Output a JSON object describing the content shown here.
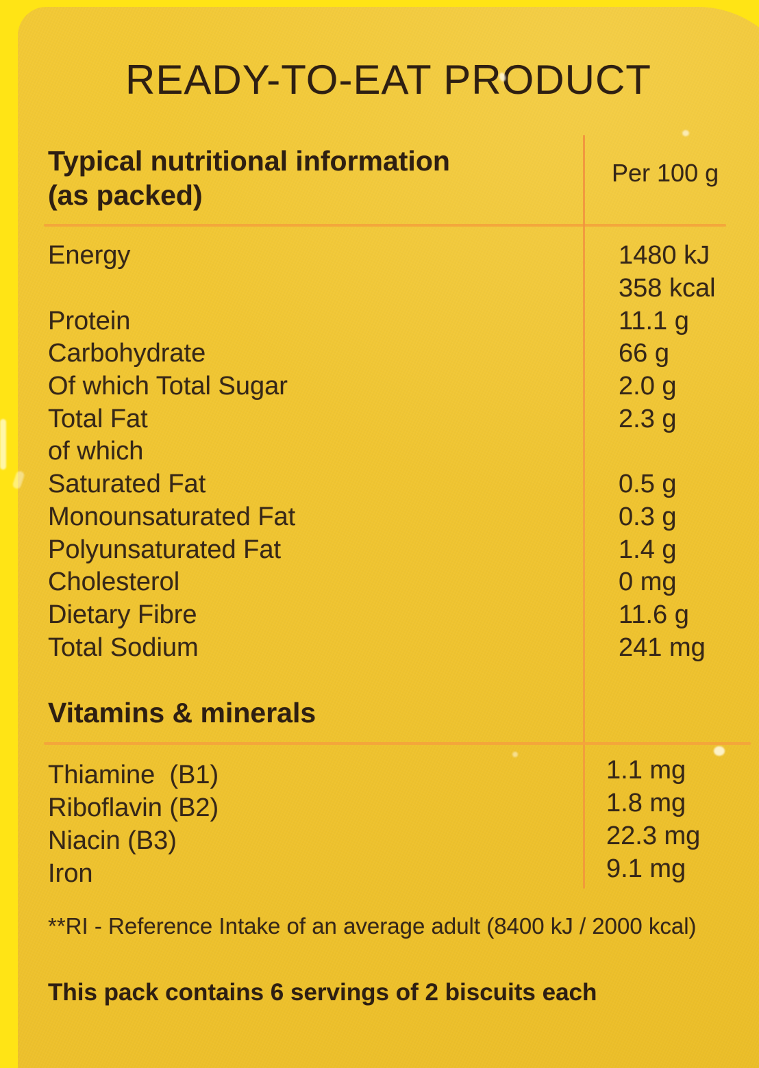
{
  "colors": {
    "background": "#FFE415",
    "panel": "#F0C430",
    "rule": "#F4A43C",
    "rule_vertical": "#F18F3E",
    "ink": "#362718",
    "ink_dark": "#2E1F12"
  },
  "header": {
    "title": "READY-TO-EAT PRODUCT"
  },
  "nutrition": {
    "heading_line1": "Typical nutritional information",
    "heading_line2": "(as packed)",
    "column_header": "Per 100 g",
    "rows": [
      {
        "label": "Energy",
        "value": "1480 kJ"
      },
      {
        "label": "",
        "value": "358 kcal"
      },
      {
        "label": "Protein",
        "value": "11.1 g"
      },
      {
        "label": "Carbohydrate",
        "value": "66 g"
      },
      {
        "label": "Of which Total Sugar",
        "value": "2.0 g"
      },
      {
        "label": "Total Fat",
        "value": "2.3 g"
      },
      {
        "label": "of which",
        "value": ""
      },
      {
        "label": "Saturated Fat",
        "value": "0.5 g"
      },
      {
        "label": "Monounsaturated Fat",
        "value": "0.3 g"
      },
      {
        "label": "Polyunsaturated Fat",
        "value": "1.4 g"
      },
      {
        "label": "Cholesterol",
        "value": "0 mg"
      },
      {
        "label": "Dietary Fibre",
        "value": "11.6 g"
      },
      {
        "label": "Total Sodium",
        "value": "241 mg"
      }
    ]
  },
  "vitamins": {
    "heading": "Vitamins & minerals",
    "rows": [
      {
        "label": "Thiamine  (B1)",
        "value": "1.1 mg"
      },
      {
        "label": "Riboflavin (B2)",
        "value": "1.8 mg"
      },
      {
        "label": "Niacin (B3)",
        "value": "22.3 mg"
      },
      {
        "label": "Iron",
        "value": "9.1 mg"
      }
    ]
  },
  "footnotes": {
    "reference_intake": "**RI - Reference Intake of an average adult (8400 kJ / 2000 kcal)",
    "servings": "This pack contains 6 servings of 2 biscuits each"
  }
}
